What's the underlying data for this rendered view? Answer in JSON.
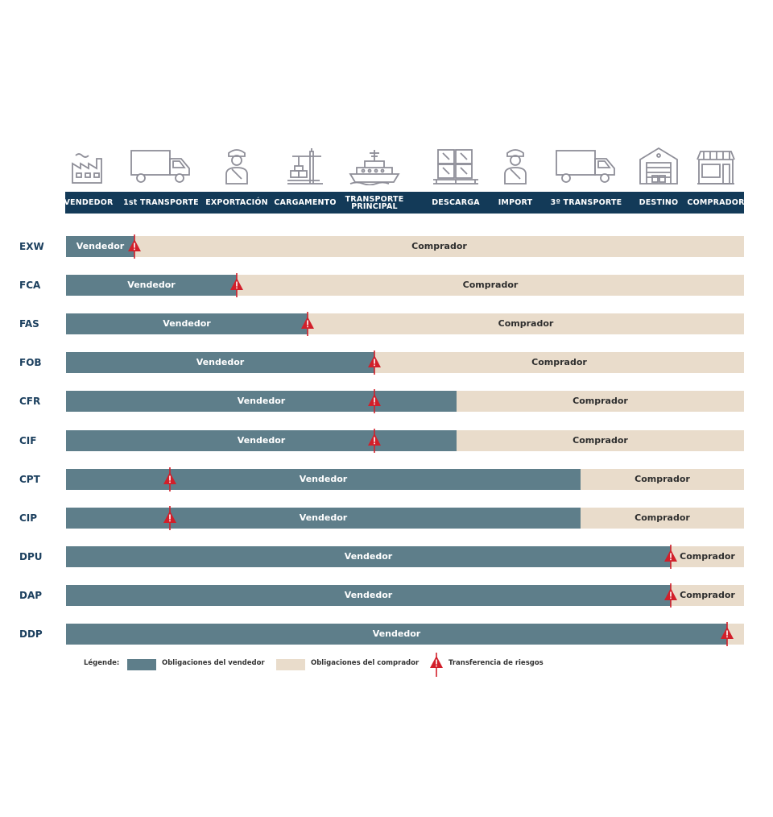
{
  "header": {
    "stages": [
      {
        "label": "VENDEDOR",
        "icon": "factory-icon"
      },
      {
        "label": "1st TRANSPORTE",
        "icon": "truck-icon"
      },
      {
        "label": "EXPORTACIÓN",
        "icon": "customs-officer-icon"
      },
      {
        "label": "CARGAMENTO",
        "icon": "port-crane-icon"
      },
      {
        "label": "TRANSPORTE\nPRINCIPAL",
        "icon": "ship-icon"
      },
      {
        "label": "DESCARGA",
        "icon": "pallet-boxes-icon"
      },
      {
        "label": "IMPORT",
        "icon": "customs-officer-icon"
      },
      {
        "label": "3º TRANSPORTE",
        "icon": "truck-icon"
      },
      {
        "label": "DESTINO",
        "icon": "warehouse-icon"
      },
      {
        "label": "COMPRADOR",
        "icon": "shop-icon"
      }
    ]
  },
  "rows": [
    {
      "code": "EXW",
      "seller_label": "Vendedor",
      "buyer_label": "Comprador",
      "seller_fraction": 0.101,
      "risk_fraction": 0.101
    },
    {
      "code": "FCA",
      "seller_label": "Vendedor",
      "buyer_label": "Comprador",
      "seller_fraction": 0.252,
      "risk_fraction": 0.252
    },
    {
      "code": "FAS",
      "seller_label": "Vendedor",
      "buyer_label": "Comprador",
      "seller_fraction": 0.356,
      "risk_fraction": 0.356
    },
    {
      "code": "FOB",
      "seller_label": "Vendedor",
      "buyer_label": "Comprador",
      "seller_fraction": 0.455,
      "risk_fraction": 0.455
    },
    {
      "code": "CFR",
      "seller_label": "Vendedor",
      "buyer_label": "Comprador",
      "seller_fraction": 0.576,
      "risk_fraction": 0.455
    },
    {
      "code": "CIF",
      "seller_label": "Vendedor",
      "buyer_label": "Comprador",
      "seller_fraction": 0.576,
      "risk_fraction": 0.455
    },
    {
      "code": "CPT",
      "seller_label": "Vendedor",
      "buyer_label": "Comprador",
      "seller_fraction": 0.759,
      "risk_fraction": 0.153
    },
    {
      "code": "CIP",
      "seller_label": "Vendedor",
      "buyer_label": "Comprador",
      "seller_fraction": 0.759,
      "risk_fraction": 0.153
    },
    {
      "code": "DPU",
      "seller_label": "Vendedor",
      "buyer_label": "Comprador",
      "seller_fraction": 0.892,
      "risk_fraction": 0.892
    },
    {
      "code": "DAP",
      "seller_label": "Vendedor",
      "buyer_label": "Comprador",
      "seller_fraction": 0.892,
      "risk_fraction": 0.892
    },
    {
      "code": "DDP",
      "seller_label": "Vendedor",
      "buyer_label": "",
      "seller_fraction": 0.975,
      "risk_fraction": 0.975
    }
  ],
  "legend": {
    "title": "Légende:",
    "seller": "Obligaciones del vendedor",
    "buyer": "Obligaciones del comprador",
    "risk": "Transferencia de riesgos"
  },
  "colors": {
    "header_band": "#133a58",
    "seller": "#5e7e8a",
    "buyer": "#e9dccb",
    "risk": "#d21f2a",
    "code_text": "#1b3f5e",
    "icon_stroke": "#8e8e98"
  }
}
